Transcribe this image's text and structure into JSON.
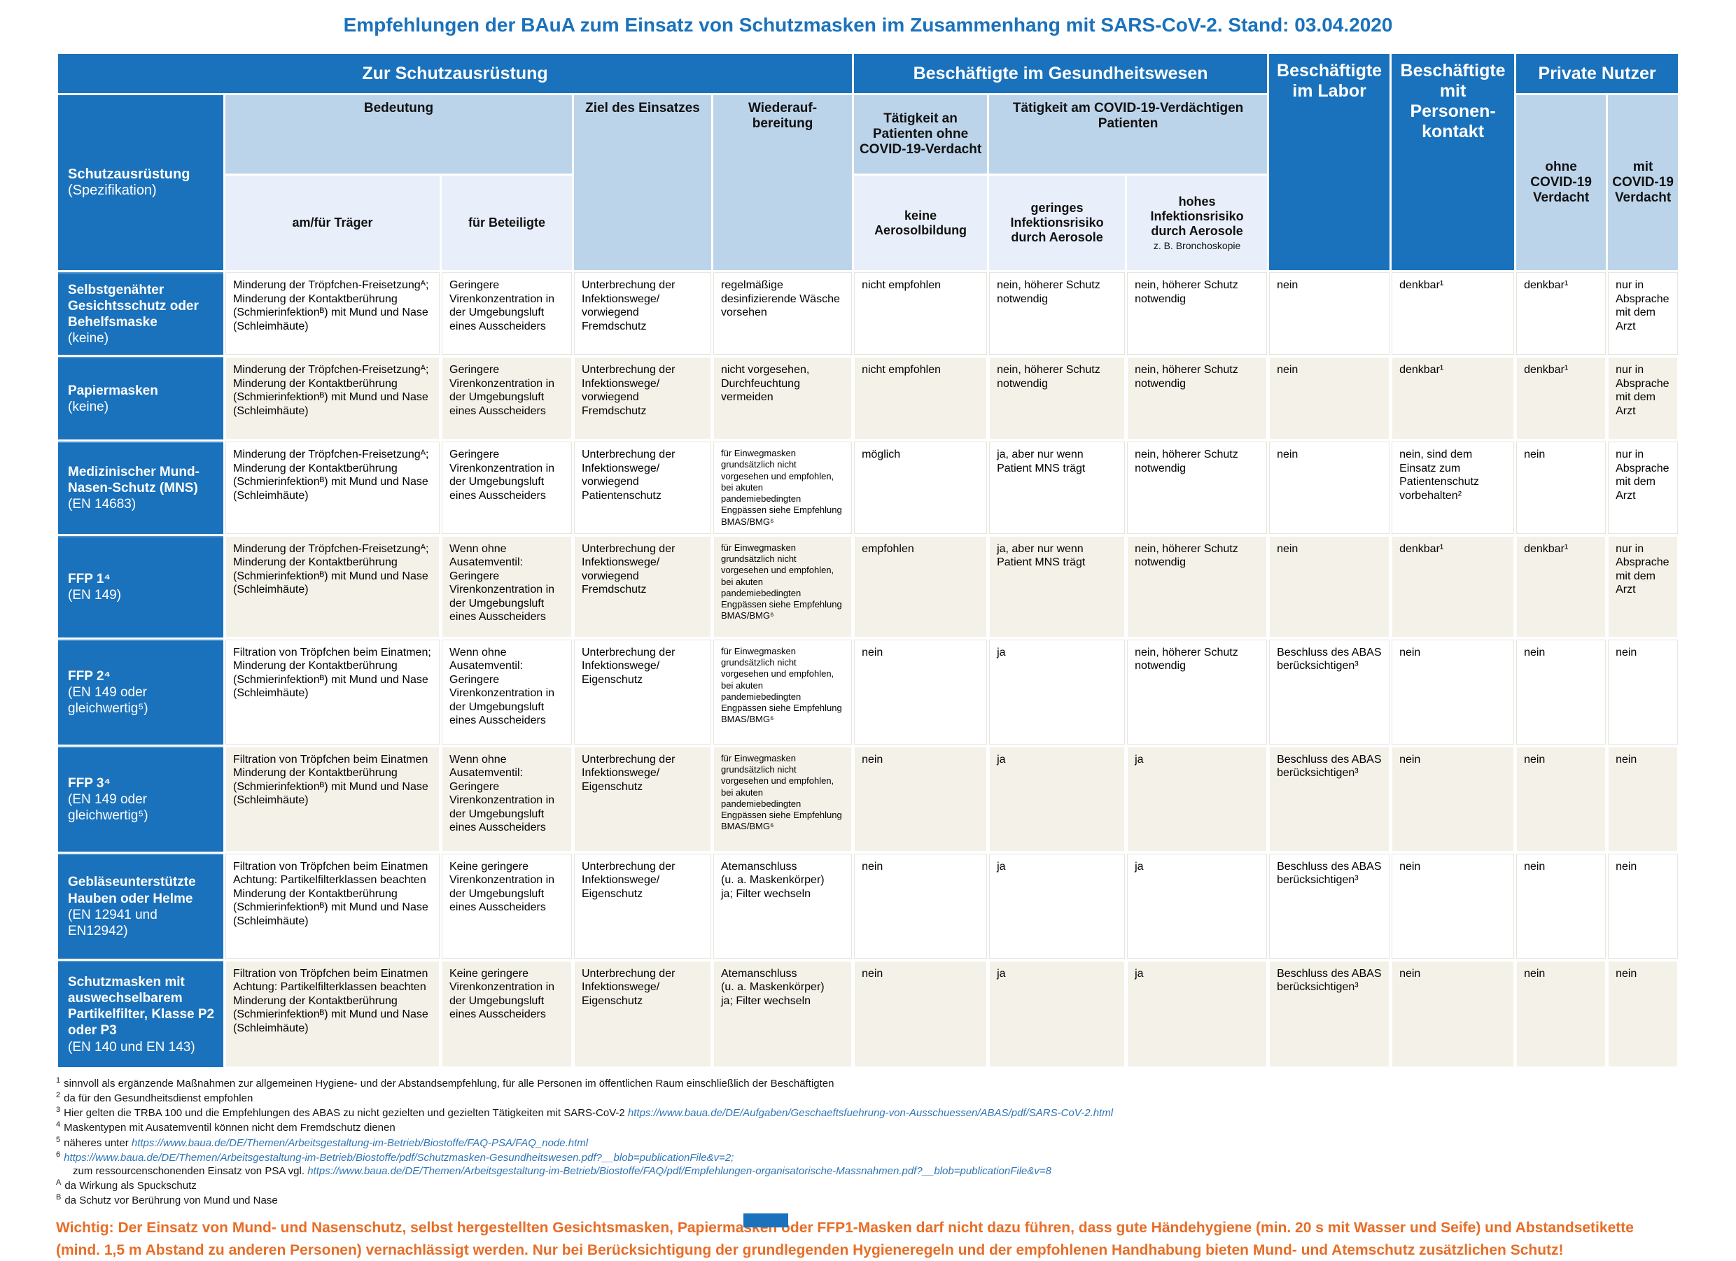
{
  "title": "Empfehlungen der BAuA zum Einsatz von Schutzmasken im Zusammenhang mit SARS-CoV-2. Stand: 03.04.2020",
  "colors": {
    "primary_blue": "#1b72bc",
    "light_blue": "#bcd4ea",
    "lighter_blue": "#e8effa",
    "cream_row": "#f3f1e8",
    "warning_orange": "#e86d26",
    "link_blue": "#2e75b6"
  },
  "header": {
    "zur_schutzausruestung": "Zur Schutzausrüstung",
    "gesundheitswesen": "Beschäftigte im Gesundheitswesen",
    "labor": "Beschäftigte im Labor",
    "personenkontakt": "Beschäftigte mit Personen-kontakt",
    "private_nutzer": "Private Nutzer",
    "label_col_title": "Schutzausrüstung",
    "label_col_sub": "(Spezifikation)",
    "bedeutung": "Bedeutung",
    "ziel": "Ziel des Einsatzes",
    "wiederaufbereitung": "Wiederauf-\nbereitung",
    "am_fuer_traeger": "am/für Träger",
    "fuer_beteiligte": "für Beteiligte",
    "taetigkeit_ohne": "Tätigkeit an Patienten ohne COVID-19-Verdacht",
    "taetigkeit_verdaechtig": "Tätigkeit am COVID-19-Verdächtigen Patienten",
    "keine_aerosol": "keine Aerosolbildung",
    "geringes_risiko": "geringes Infektionsrisiko durch Aerosole",
    "hohes_risiko": "hohes Infektionsrisiko durch Aerosole",
    "hohes_risiko_sub": "z. B. Bronchoskopie",
    "ohne_covid": "ohne COVID-19 Verdacht",
    "mit_covid": "mit COVID-19 Verdacht"
  },
  "rows": [
    {
      "name": "Selbstgenähter Gesichtsschutz oder Behelfsmaske",
      "spec": "(keine)",
      "traeger": "Minderung der Tröpfchen-Freisetzungᴬ;\nMinderung der Kontaktberührung (Schmierinfektionᴮ) mit Mund und Nase (Schleimhäute)",
      "beteiligte": "Geringere Virenkonzentration in der Umgebungsluft eines Ausscheiders",
      "ziel": "Unterbrechung der Infektionswege/\nvorwiegend Fremdschutz",
      "wiederauf": "regelmäßige desinfizierende Wäsche vorsehen",
      "keine_aerosol": "nicht empfohlen",
      "geringes_risiko": "nein, höherer Schutz notwendig",
      "hohes_risiko": "nein, höherer Schutz notwendig",
      "labor": "nein",
      "personenkontakt": "denkbar¹",
      "ohne_covid": "denkbar¹",
      "mit_covid": "nur in Absprache mit dem Arzt"
    },
    {
      "name": "Papiermasken",
      "spec": "(keine)",
      "traeger": "Minderung der Tröpfchen-Freisetzungᴬ;\nMinderung der Kontaktberührung (Schmierinfektionᴮ) mit Mund und Nase (Schleimhäute)",
      "beteiligte": "Geringere Virenkonzentration in der Umgebungsluft eines Ausscheiders",
      "ziel": "Unterbrechung der Infektionswege/\nvorwiegend Fremdschutz",
      "wiederauf": "nicht vorgesehen, Durchfeuchtung vermeiden",
      "keine_aerosol": "nicht empfohlen",
      "geringes_risiko": "nein, höherer Schutz notwendig",
      "hohes_risiko": "nein, höherer Schutz notwendig",
      "labor": "nein",
      "personenkontakt": "denkbar¹",
      "ohne_covid": "denkbar¹",
      "mit_covid": "nur in Absprache mit dem Arzt"
    },
    {
      "name": "Medizinischer Mund-Nasen-Schutz (MNS)",
      "spec": "(EN 14683)",
      "traeger": "Minderung der Tröpfchen-Freisetzungᴬ;\nMinderung der Kontaktberührung (Schmierinfektionᴮ) mit Mund und Nase (Schleimhäute)",
      "beteiligte": "Geringere Virenkonzentration in der Umgebungsluft eines Ausscheiders",
      "ziel": "Unterbrechung der Infektionswege/\nvorwiegend Patientenschutz",
      "wiederauf": "für Einwegmasken grundsätzlich nicht vorgesehen und empfohlen, bei akuten pandemiebedingten Engpässen siehe Empfehlung BMAS/BMG⁶",
      "keine_aerosol": "möglich",
      "geringes_risiko": "ja, aber nur wenn Patient MNS trägt",
      "hohes_risiko": "nein, höherer Schutz notwendig",
      "labor": "nein",
      "personenkontakt": "nein, sind dem Einsatz zum Patientenschutz vorbehalten²",
      "ohne_covid": "nein",
      "mit_covid": "nur in Absprache mit dem Arzt"
    },
    {
      "name": "FFP 1⁴",
      "spec": "(EN 149)",
      "traeger": "Minderung der Tröpfchen-Freisetzungᴬ;\nMinderung der Kontaktberührung (Schmierinfektionᴮ) mit Mund und Nase (Schleimhäute)",
      "beteiligte": "Wenn ohne Ausatemventil: Geringere Virenkonzentration in der Umgebungsluft eines Ausscheiders",
      "ziel": "Unterbrechung der Infektionswege/\nvorwiegend Fremdschutz",
      "wiederauf": "für Einwegmasken grundsätzlich nicht vorgesehen und empfohlen, bei akuten pandemiebedingten Engpässen siehe Empfehlung BMAS/BMG⁶",
      "keine_aerosol": "empfohlen",
      "geringes_risiko": "ja, aber nur wenn Patient MNS trägt",
      "hohes_risiko": "nein, höherer Schutz notwendig",
      "labor": "nein",
      "personenkontakt": "denkbar¹",
      "ohne_covid": "denkbar¹",
      "mit_covid": "nur in Absprache mit dem Arzt"
    },
    {
      "name": "FFP 2⁴",
      "spec": "(EN 149 oder gleichwertig⁵)",
      "traeger": "Filtration von Tröpfchen beim Einatmen;\nMinderung der Kontaktberührung (Schmierinfektionᴮ) mit Mund und Nase (Schleimhäute)",
      "beteiligte": "Wenn ohne Ausatemventil: Geringere Virenkonzentration in der Umgebungsluft eines Ausscheiders",
      "ziel": "Unterbrechung der Infektionswege/\nEigenschutz",
      "wiederauf": "für Einwegmasken grundsätzlich nicht vorgesehen und empfohlen, bei akuten pandemiebedingten Engpässen siehe Empfehlung BMAS/BMG⁶",
      "keine_aerosol": "nein",
      "geringes_risiko": "ja",
      "hohes_risiko": "nein, höherer Schutz notwendig",
      "labor": "Beschluss des ABAS berücksichtigen³",
      "personenkontakt": "nein",
      "ohne_covid": "nein",
      "mit_covid": "nein"
    },
    {
      "name": "FFP 3⁴",
      "spec": "(EN 149 oder gleichwertig⁵)",
      "traeger": "Filtration von Tröpfchen beim Einatmen\nMinderung der Kontaktberührung (Schmierinfektionᴮ) mit Mund und Nase (Schleimhäute)",
      "beteiligte": "Wenn ohne Ausatemventil: Geringere Virenkonzentration in der Umgebungsluft eines Ausscheiders",
      "ziel": "Unterbrechung der Infektionswege/\nEigenschutz",
      "wiederauf": "für Einwegmasken grundsätzlich nicht vorgesehen und empfohlen, bei akuten pandemiebedingten Engpässen siehe Empfehlung BMAS/BMG⁶",
      "keine_aerosol": "nein",
      "geringes_risiko": "ja",
      "hohes_risiko": "ja",
      "labor": "Beschluss des ABAS berücksichtigen³",
      "personenkontakt": "nein",
      "ohne_covid": "nein",
      "mit_covid": "nein"
    },
    {
      "name": "Gebläseunterstützte Hauben oder Helme",
      "spec": "(EN 12941 und EN12942)",
      "traeger": "Filtration von Tröpfchen beim Einatmen\nAchtung: Partikelfilterklassen beachten\nMinderung der Kontaktberührung (Schmierinfektionᴮ) mit Mund und Nase (Schleimhäute)",
      "beteiligte": "Keine geringere Virenkonzentration in der Umgebungsluft eines Ausscheiders",
      "ziel": "Unterbrechung der Infektionswege/\nEigenschutz",
      "wiederauf": "Atemanschluss\n(u. a. Maskenkörper)\nja; Filter wechseln",
      "keine_aerosol": "nein",
      "geringes_risiko": "ja",
      "hohes_risiko": "ja",
      "labor": "Beschluss des ABAS berücksichtigen³",
      "personenkontakt": "nein",
      "ohne_covid": "nein",
      "mit_covid": "nein"
    },
    {
      "name": "Schutzmasken mit auswechselbarem Partikelfilter, Klasse P2 oder P3",
      "spec": "(EN 140 und EN 143)",
      "traeger": "Filtration von Tröpfchen beim Einatmen\nAchtung: Partikelfilterklassen beachten\nMinderung der Kontaktberührung (Schmierinfektionᴮ) mit Mund und Nase (Schleimhäute)",
      "beteiligte": "Keine geringere Virenkonzentration in der Umgebungsluft eines Ausscheiders",
      "ziel": "Unterbrechung der Infektionswege/\nEigenschutz",
      "wiederauf": "Atemanschluss\n(u. a. Maskenkörper)\nja; Filter wechseln",
      "keine_aerosol": "nein",
      "geringes_risiko": "ja",
      "hohes_risiko": "ja",
      "labor": "Beschluss des ABAS berücksichtigen³",
      "personenkontakt": "nein",
      "ohne_covid": "nein",
      "mit_covid": "nein"
    }
  ],
  "footnotes": [
    {
      "marker": "1",
      "segments": [
        {
          "t": "sinnvoll als ergänzende Maßnahmen zur allgemeinen Hygiene- und der Abstandsempfehlung, für alle Personen im öffentlichen Raum einschließlich der Beschäftigten"
        }
      ]
    },
    {
      "marker": "2",
      "segments": [
        {
          "t": "da für den Gesundheitsdienst empfohlen"
        }
      ]
    },
    {
      "marker": "3",
      "segments": [
        {
          "t": "Hier gelten die TRBA 100 und die Empfehlungen des ABAS zu nicht gezielten und gezielten Tätigkeiten mit SARS-CoV-2 "
        },
        {
          "t": "https://www.baua.de/DE/Aufgaben/Geschaeftsfuehrung-von-Ausschuessen/ABAS/pdf/SARS-CoV-2.html",
          "link": true
        }
      ]
    },
    {
      "marker": "4",
      "segments": [
        {
          "t": "Maskentypen mit Ausatemventil können nicht dem Fremdschutz dienen"
        }
      ]
    },
    {
      "marker": "5",
      "segments": [
        {
          "t": "näheres unter "
        },
        {
          "t": "https://www.baua.de/DE/Themen/Arbeitsgestaltung-im-Betrieb/Biostoffe/FAQ-PSA/FAQ_node.html",
          "link": true
        }
      ]
    },
    {
      "marker": "6",
      "segments": [
        {
          "t": "https://www.baua.de/DE/Themen/Arbeitsgestaltung-im-Betrieb/Biostoffe/pdf/Schutzmasken-Gesundheitswesen.pdf?__blob=publicationFile&v=2;",
          "link": true
        },
        {
          "t": "\nzum ressourcenschonenden Einsatz von PSA vgl. "
        },
        {
          "t": "https://www.baua.de/DE/Themen/Arbeitsgestaltung-im-Betrieb/Biostoffe/FAQ/pdf/Empfehlungen-organisatorische-Massnahmen.pdf?__blob=publicationFile&v=8",
          "link": true
        }
      ]
    },
    {
      "marker": "A",
      "segments": [
        {
          "t": "da Wirkung als Spuckschutz"
        }
      ]
    },
    {
      "marker": "B",
      "segments": [
        {
          "t": "da Schutz vor Berührung von Mund und Nase"
        }
      ]
    }
  ],
  "warning": "Wichtig: Der Einsatz von Mund- und Nasenschutz, selbst hergestellten Gesichtsmasken, Papiermasken oder FFP1-Masken darf nicht dazu führen, dass gute Händehygiene (min. 20 s mit Wasser und Seife) und Abstandsetikette (mind. 1,5 m Abstand zu anderen Personen) vernachlässigt werden. Nur bei Berücksichtigung der grundlegenden Hygieneregeln und der empfohlenen Handhabung bieten Mund- und Atemschutz zusätzlichen Schutz!"
}
